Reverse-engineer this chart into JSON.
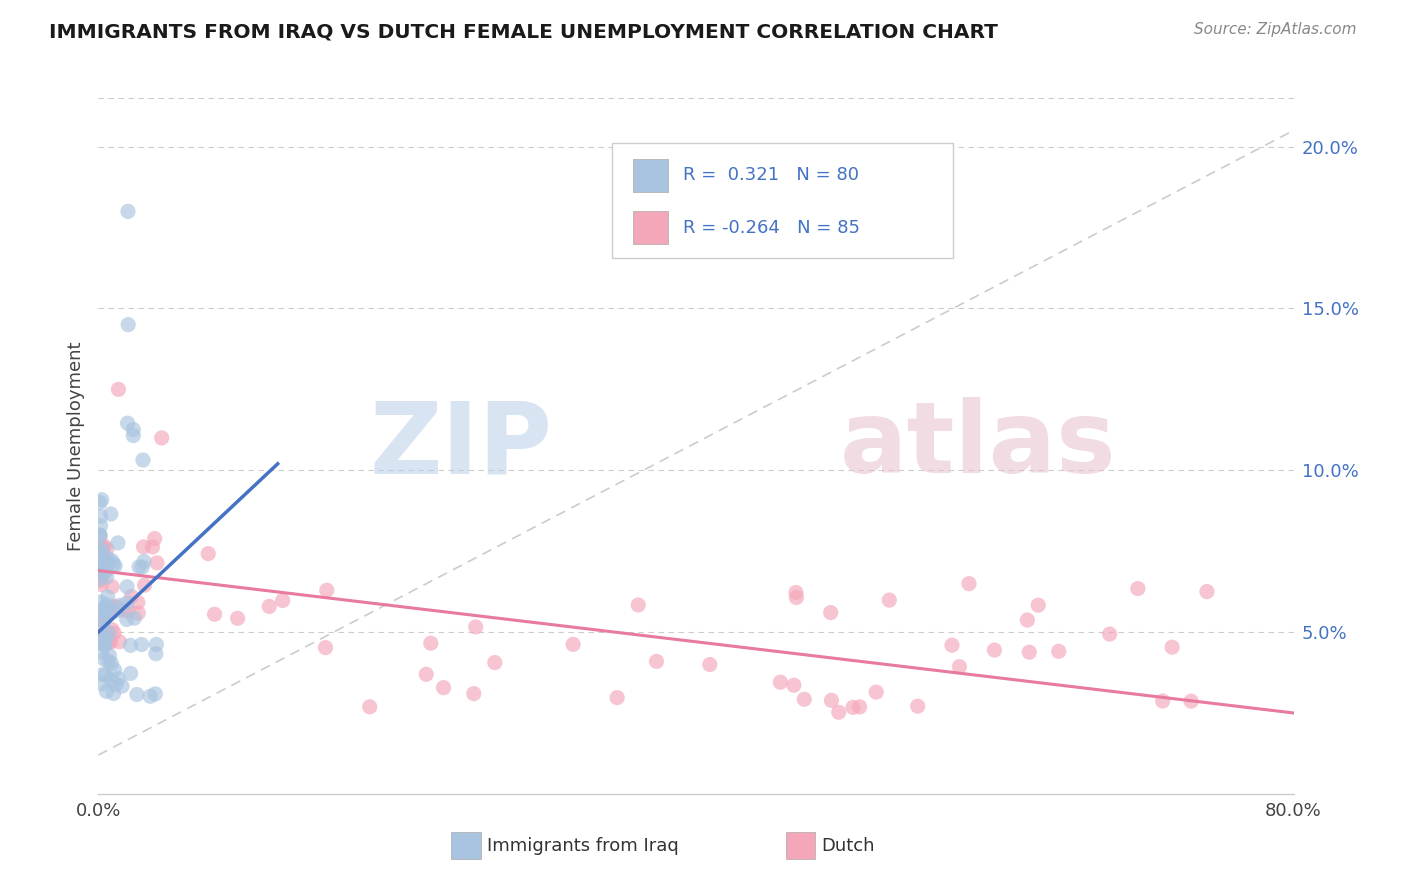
{
  "title": "IMMIGRANTS FROM IRAQ VS DUTCH FEMALE UNEMPLOYMENT CORRELATION CHART",
  "source": "Source: ZipAtlas.com",
  "ylabel": "Female Unemployment",
  "right_yticks": [
    "20.0%",
    "15.0%",
    "10.0%",
    "5.0%"
  ],
  "right_ytick_vals": [
    0.2,
    0.15,
    0.1,
    0.05
  ],
  "xlim": [
    0.0,
    0.8
  ],
  "ylim": [
    0.0,
    0.215
  ],
  "color_iraq": "#a8c4e0",
  "color_dutch": "#f4a7b9",
  "color_iraq_line": "#4472c4",
  "color_dutch_line": "#e87aa0",
  "color_trend_dashed": "#c0c8d0",
  "color_blue_text": "#4472c4",
  "iraq_line_x": [
    0.0,
    0.12
  ],
  "iraq_line_y": [
    0.05,
    0.102
  ],
  "dutch_line_x": [
    0.0,
    0.8
  ],
  "dutch_line_y": [
    0.069,
    0.025
  ]
}
